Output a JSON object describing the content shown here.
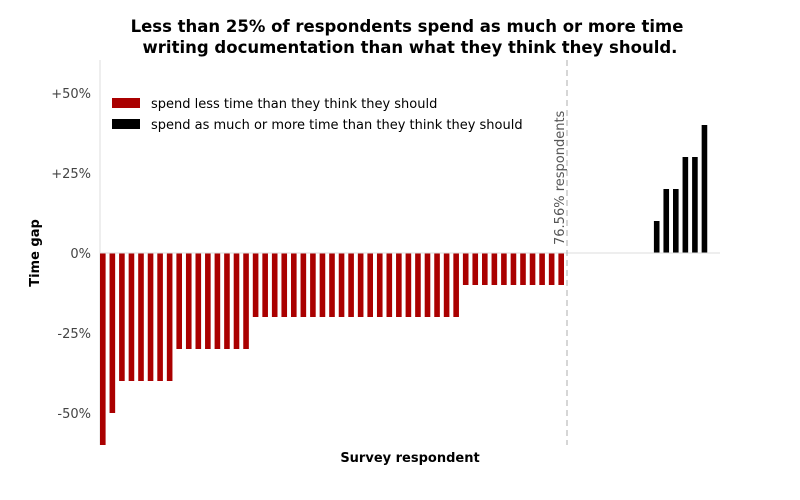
{
  "chart_data": {
    "type": "bar",
    "title_lines": [
      "Less than 25% of respondents spend as much or more time",
      "writing documentation than what they think they should."
    ],
    "xlabel": "Survey respondent",
    "ylabel": "Time gap",
    "ylim": [
      -60,
      60
    ],
    "y_ticks": [
      {
        "value": 50,
        "label": "+50%"
      },
      {
        "value": 25,
        "label": "+25%"
      },
      {
        "value": 0,
        "label": "0%"
      },
      {
        "value": -25,
        "label": "-25%"
      },
      {
        "value": -50,
        "label": "-50%"
      }
    ],
    "grid": false,
    "legend_position": "top-left",
    "series": [
      {
        "name": "spend less time than they think they should",
        "color": "#aa0000",
        "values": [
          -60,
          -50,
          -40,
          -40,
          -40,
          -40,
          -40,
          -40,
          -30,
          -30,
          -30,
          -30,
          -30,
          -30,
          -30,
          -30,
          -20,
          -20,
          -20,
          -20,
          -20,
          -20,
          -20,
          -20,
          -20,
          -20,
          -20,
          -20,
          -20,
          -20,
          -20,
          -20,
          -20,
          -20,
          -20,
          -20,
          -20,
          -20,
          -10,
          -10,
          -10,
          -10,
          -10,
          -10,
          -10,
          -10,
          -10,
          -10,
          -10
        ]
      },
      {
        "name": "spend as much or more time than they think they should",
        "color": "#000000",
        "values": [
          0,
          0,
          0,
          0,
          0,
          0,
          0,
          0,
          0,
          10,
          20,
          20,
          30,
          30,
          40
        ]
      }
    ],
    "divider_annotation": "76.56% respondents"
  }
}
